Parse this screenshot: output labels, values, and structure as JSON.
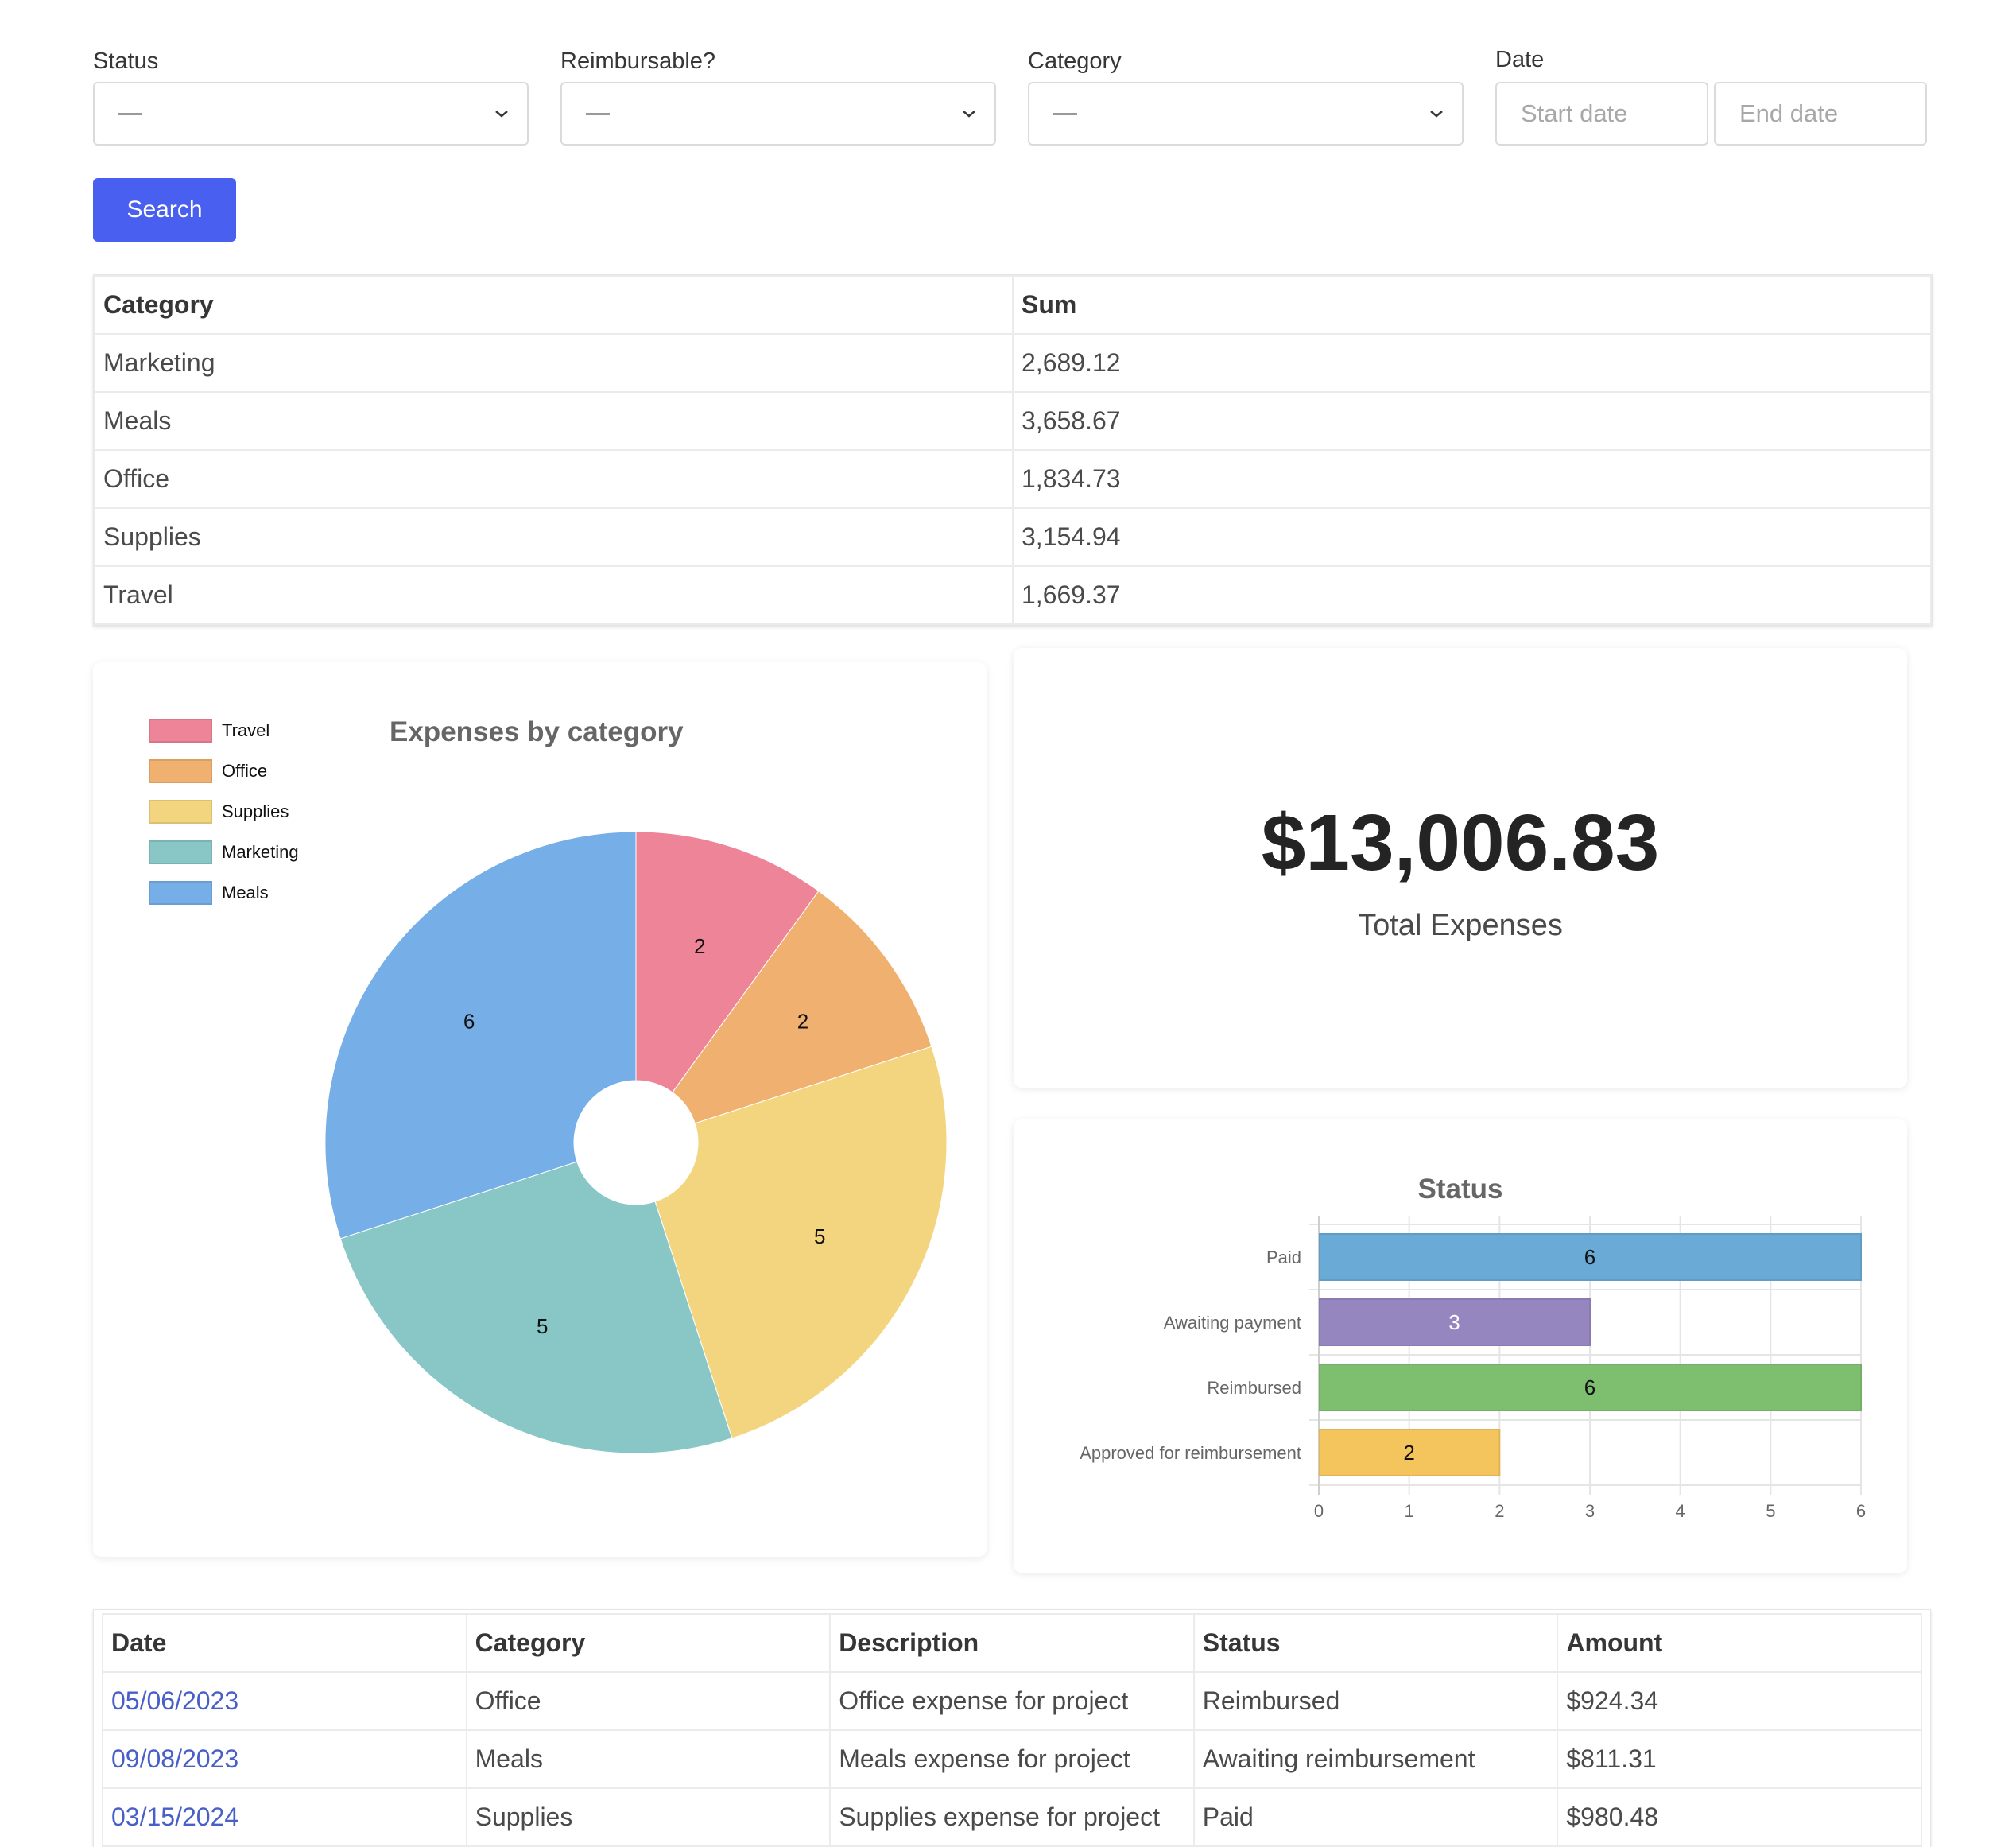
{
  "filters": {
    "status": {
      "label": "Status",
      "value": "—"
    },
    "reimbursable": {
      "label": "Reimbursable?",
      "value": "—"
    },
    "category": {
      "label": "Category",
      "value": "—"
    },
    "date": {
      "label": "Date",
      "start_placeholder": "Start date",
      "end_placeholder": "End date"
    },
    "search_label": "Search"
  },
  "summary_table": {
    "headers": [
      "Category",
      "Sum"
    ],
    "rows": [
      [
        "Marketing",
        "2,689.12"
      ],
      [
        "Meals",
        "3,658.67"
      ],
      [
        "Office",
        "1,834.73"
      ],
      [
        "Supplies",
        "3,154.94"
      ],
      [
        "Travel",
        "1,669.37"
      ]
    ]
  },
  "total": {
    "amount": "$13,006.83",
    "label": "Total Expenses"
  },
  "chart_data": [
    {
      "type": "pie",
      "title": "Expenses by category",
      "donut": true,
      "legend_position": "top-left",
      "slices": [
        {
          "label": "Travel",
          "value": 2,
          "color": "#ee8497"
        },
        {
          "label": "Office",
          "value": 2,
          "color": "#f0b06f"
        },
        {
          "label": "Supplies",
          "value": 5,
          "color": "#f4d57f"
        },
        {
          "label": "Marketing",
          "value": 5,
          "color": "#89c7c6"
        },
        {
          "label": "Meals",
          "value": 6,
          "color": "#76aee7"
        }
      ]
    },
    {
      "type": "bar",
      "orientation": "horizontal",
      "title": "Status",
      "categories": [
        "Paid",
        "Awaiting payment",
        "Reimbursed",
        "Approved for reimbursement"
      ],
      "values": [
        6,
        3,
        6,
        2
      ],
      "colors": [
        "#6aaad6",
        "#9686c0",
        "#7dbe6f",
        "#f4c45d"
      ],
      "xlim": [
        0,
        6
      ],
      "xticks": [
        "0",
        "1",
        "2",
        "3",
        "4",
        "5",
        "6"
      ],
      "grid": true
    }
  ],
  "expenses_table": {
    "headers": [
      "Date",
      "Category",
      "Description",
      "Status",
      "Amount"
    ],
    "rows": [
      [
        "05/06/2023",
        "Office",
        "Office expense for project",
        "Reimbursed",
        "$924.34"
      ],
      [
        "09/08/2023",
        "Meals",
        "Meals expense for project",
        "Awaiting reimbursement",
        "$811.31"
      ],
      [
        "03/15/2024",
        "Supplies",
        "Supplies expense for project",
        "Paid",
        "$980.48"
      ]
    ]
  }
}
